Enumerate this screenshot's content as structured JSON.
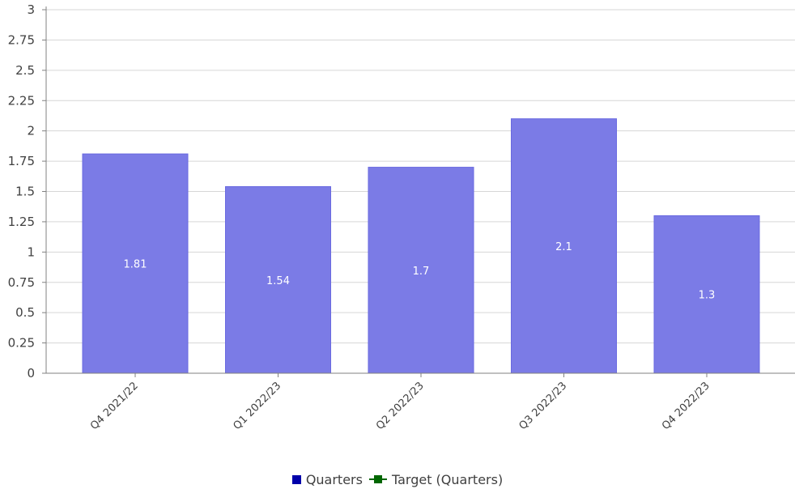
{
  "chart_data": {
    "type": "bar",
    "title": "",
    "xlabel": "",
    "ylabel": "",
    "categories": [
      "Q4 2021/22",
      "Q1 2022/23",
      "Q2 2022/23",
      "Q3 2022/23",
      "Q4 2022/23"
    ],
    "series": [
      {
        "name": "Quarters",
        "values": [
          1.81,
          1.54,
          1.7,
          2.1,
          1.3
        ],
        "color": "#7b7be6"
      }
    ],
    "data_labels": [
      "1.81",
      "1.54",
      "1.7",
      "2.1",
      "1.3"
    ],
    "ylim": [
      0,
      3
    ],
    "yticks": [
      0,
      0.25,
      0.5,
      0.75,
      1,
      1.25,
      1.5,
      1.75,
      2,
      2.25,
      2.5,
      2.75,
      3
    ],
    "ytick_labels": [
      "0",
      "0.25",
      "0.5",
      "0.75",
      "1",
      "1.25",
      "1.5",
      "1.75",
      "2",
      "2.25",
      "2.5",
      "2.75",
      "3"
    ],
    "grid": true,
    "legend_position": "bottom",
    "legend": [
      {
        "label": "Quarters",
        "color": "#0000aa",
        "marker": "square"
      },
      {
        "label": "Target (Quarters)",
        "color": "#006600",
        "marker": "line"
      }
    ]
  }
}
